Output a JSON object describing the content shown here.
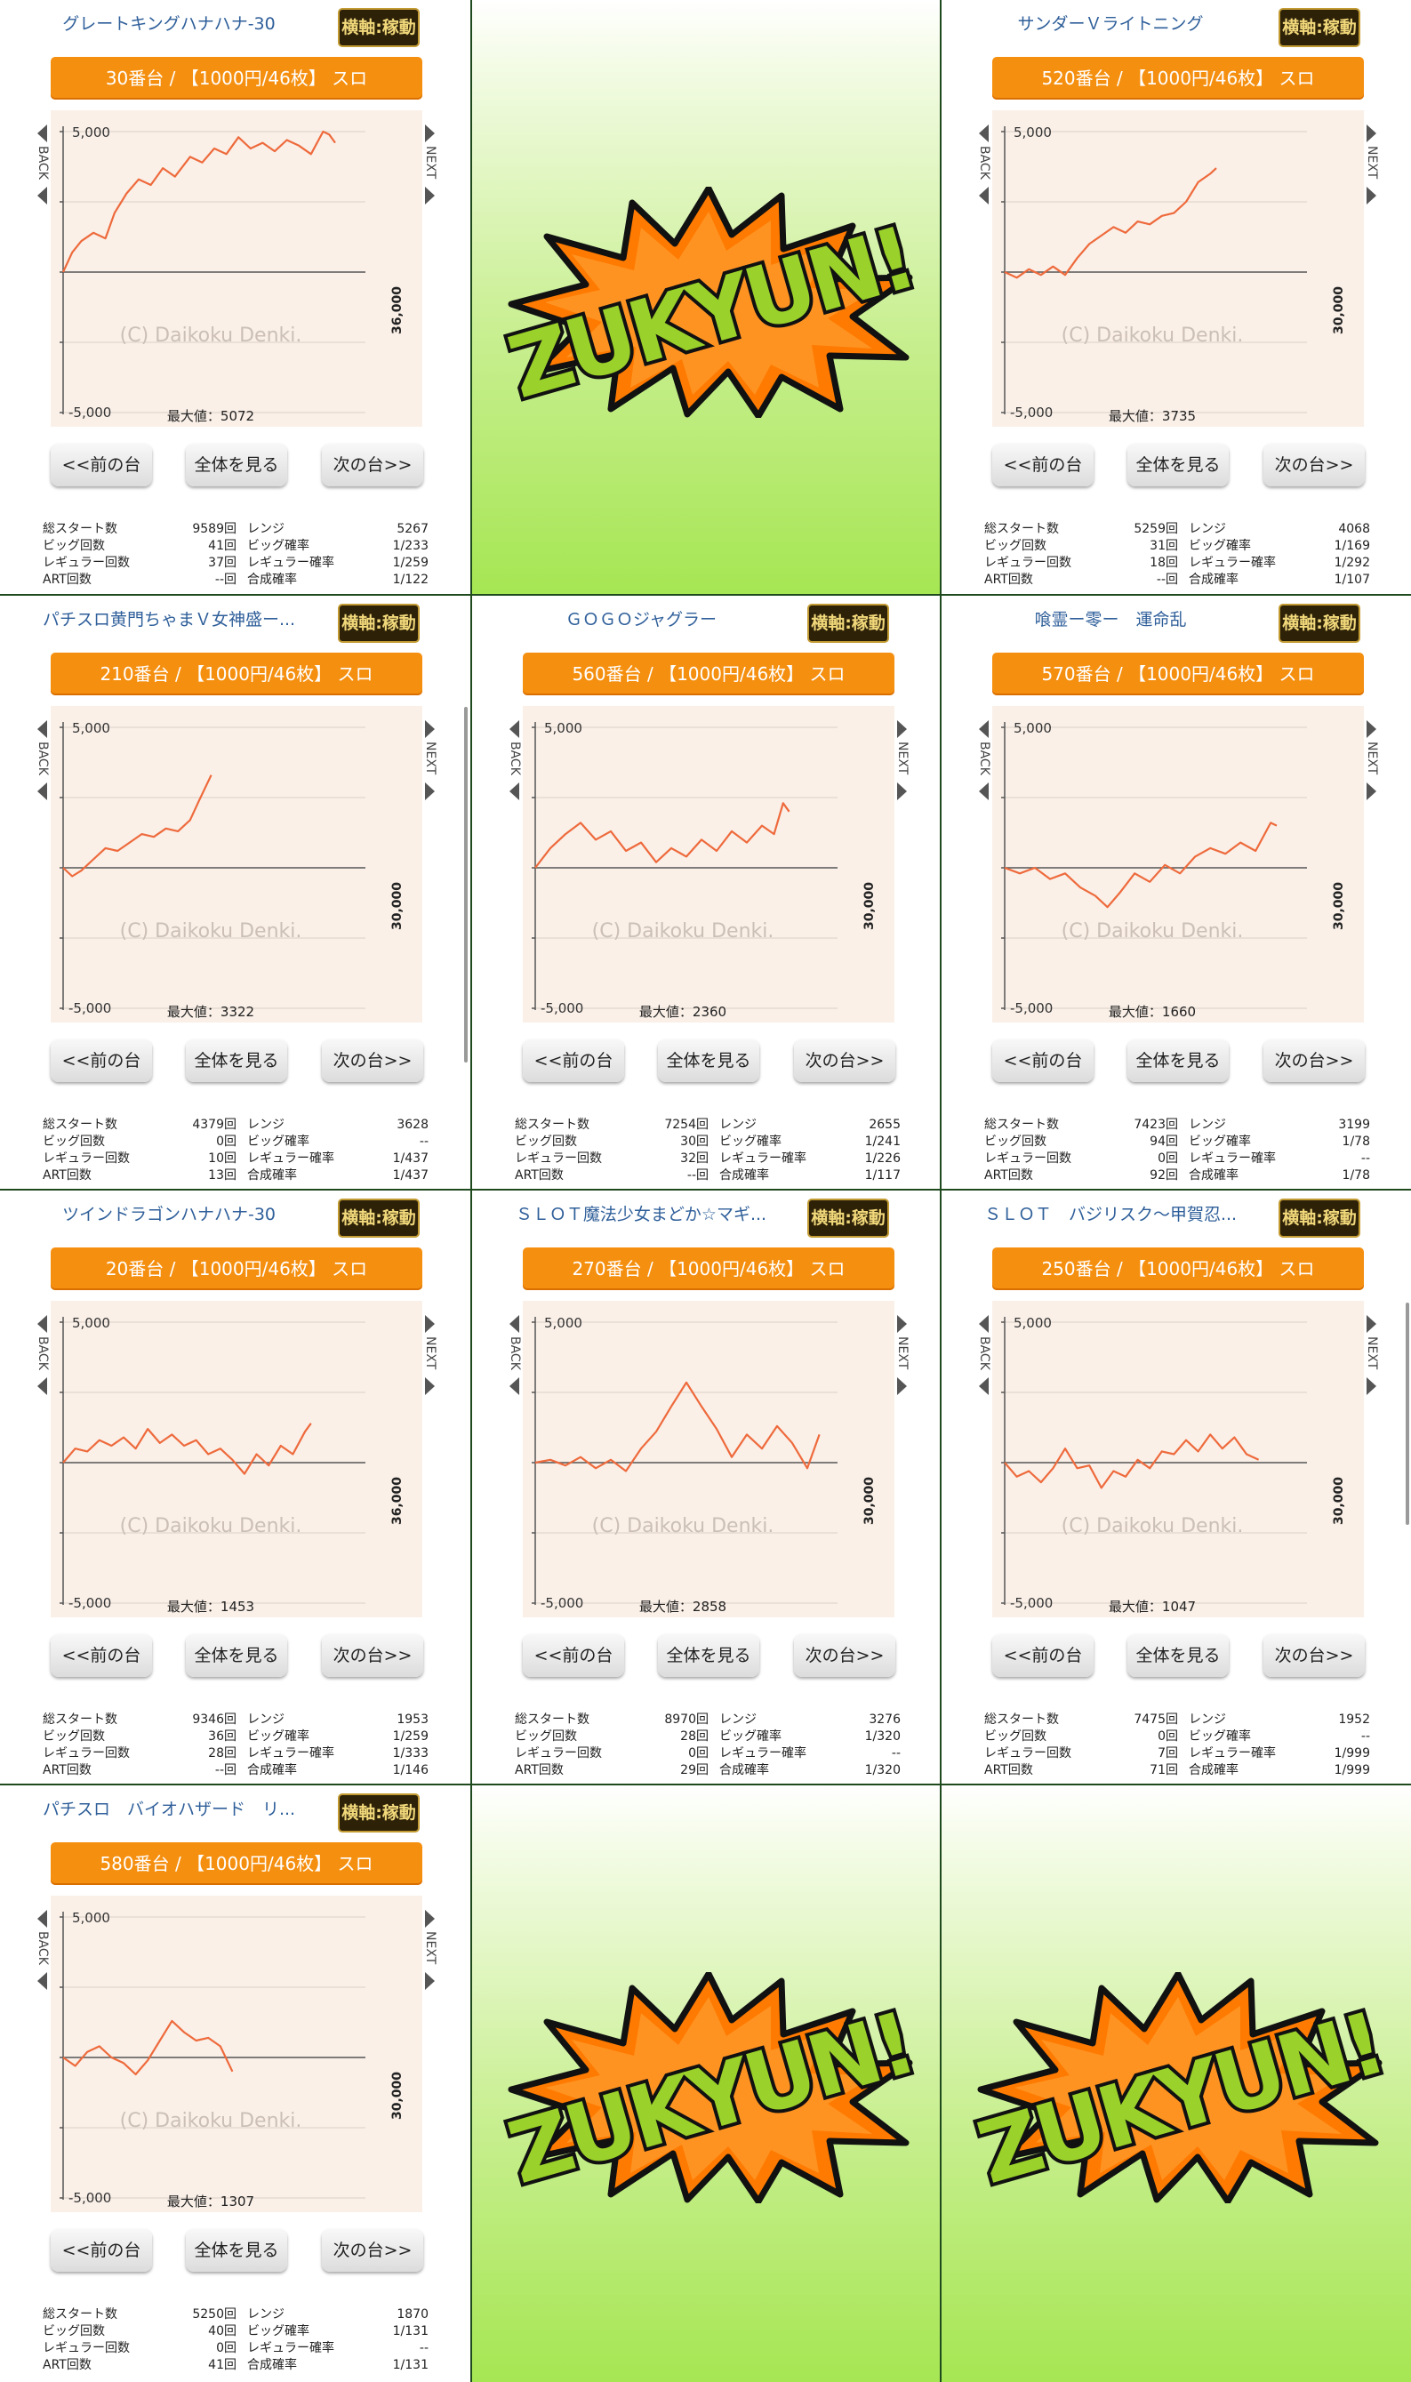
{
  "promo_logo_text": "ZUKYUN!",
  "common": {
    "badge": "横軸:稼動",
    "prev": "<<前の台",
    "all": "全体を見る",
    "next": "次の台>>",
    "back_text": "BACK",
    "next_text": "NEXT",
    "watermark": "(C) Daikoku Denki.",
    "y_top": "5,000",
    "y_bottom": "-5,000",
    "max_prefix": "最大値：",
    "stat_labels": {
      "total_start": "総スタート数",
      "big": "ビッグ回数",
      "regular": "レギュラー回数",
      "art": "ART回数",
      "rate": "レンジ",
      "big_rate": "ビッグ確率",
      "reg_rate": "レギュラー確率",
      "combined_rate": "合成確率"
    }
  },
  "cells": [
    {
      "type": "machine",
      "title": "グレートキングハナハナ-30",
      "machine": "30番台 / 【1000円/46枚】 スロ",
      "x_axis": "36,000",
      "max": "5072",
      "stats": {
        "total_start": "9589回",
        "big": "41回",
        "regular": "37回",
        "art": "--回",
        "rate": "5267",
        "big_rate": "1/233",
        "reg_rate": "1/259",
        "combined_rate": "1/122"
      },
      "series": [
        [
          0,
          0
        ],
        [
          0.03,
          700
        ],
        [
          0.06,
          1100
        ],
        [
          0.1,
          1400
        ],
        [
          0.14,
          1200
        ],
        [
          0.17,
          2100
        ],
        [
          0.21,
          2800
        ],
        [
          0.25,
          3300
        ],
        [
          0.29,
          3100
        ],
        [
          0.33,
          3700
        ],
        [
          0.37,
          3400
        ],
        [
          0.42,
          4100
        ],
        [
          0.46,
          3900
        ],
        [
          0.5,
          4400
        ],
        [
          0.54,
          4200
        ],
        [
          0.58,
          4800
        ],
        [
          0.62,
          4400
        ],
        [
          0.66,
          4600
        ],
        [
          0.7,
          4300
        ],
        [
          0.74,
          4700
        ],
        [
          0.78,
          4500
        ],
        [
          0.82,
          4200
        ],
        [
          0.86,
          5000
        ],
        [
          0.88,
          4900
        ],
        [
          0.9,
          4600
        ]
      ]
    },
    {
      "type": "promo"
    },
    {
      "type": "machine",
      "title": "サンダーＶライトニング",
      "machine": "520番台 / 【1000円/46枚】 スロ",
      "x_axis": "30,000",
      "max": "3735",
      "stats": {
        "total_start": "5259回",
        "big": "31回",
        "regular": "18回",
        "art": "--回",
        "rate": "4068",
        "big_rate": "1/169",
        "reg_rate": "1/292",
        "combined_rate": "1/107"
      },
      "series": [
        [
          0,
          0
        ],
        [
          0.04,
          -200
        ],
        [
          0.08,
          100
        ],
        [
          0.12,
          -100
        ],
        [
          0.16,
          200
        ],
        [
          0.2,
          -100
        ],
        [
          0.24,
          500
        ],
        [
          0.28,
          1000
        ],
        [
          0.32,
          1300
        ],
        [
          0.36,
          1600
        ],
        [
          0.4,
          1400
        ],
        [
          0.44,
          1800
        ],
        [
          0.48,
          1700
        ],
        [
          0.52,
          2000
        ],
        [
          0.56,
          2100
        ],
        [
          0.6,
          2500
        ],
        [
          0.64,
          3200
        ],
        [
          0.68,
          3500
        ],
        [
          0.7,
          3700
        ]
      ]
    },
    {
      "type": "machine",
      "title": "パチスロ黄門ちゃまＶ女神盛ー...",
      "machine": "210番台 / 【1000円/46枚】 スロ",
      "x_axis": "30,000",
      "max": "3322",
      "stats": {
        "total_start": "4379回",
        "big": "0回",
        "regular": "10回",
        "art": "13回",
        "rate": "3628",
        "big_rate": "--",
        "reg_rate": "1/437",
        "combined_rate": "1/437"
      },
      "series": [
        [
          0,
          0
        ],
        [
          0.03,
          -300
        ],
        [
          0.06,
          -100
        ],
        [
          0.1,
          300
        ],
        [
          0.14,
          700
        ],
        [
          0.18,
          600
        ],
        [
          0.22,
          900
        ],
        [
          0.26,
          1200
        ],
        [
          0.3,
          1100
        ],
        [
          0.34,
          1400
        ],
        [
          0.38,
          1300
        ],
        [
          0.42,
          1700
        ],
        [
          0.45,
          2400
        ],
        [
          0.49,
          3300
        ]
      ]
    },
    {
      "type": "machine",
      "title": "ＧＯＧＯジャグラー",
      "machine": "560番台 / 【1000円/46枚】 スロ",
      "x_axis": "30,000",
      "max": "2360",
      "stats": {
        "total_start": "7254回",
        "big": "30回",
        "regular": "32回",
        "art": "--回",
        "rate": "2655",
        "big_rate": "1/241",
        "reg_rate": "1/226",
        "combined_rate": "1/117"
      },
      "series": [
        [
          0,
          0
        ],
        [
          0.05,
          700
        ],
        [
          0.1,
          1200
        ],
        [
          0.15,
          1600
        ],
        [
          0.2,
          1000
        ],
        [
          0.25,
          1300
        ],
        [
          0.3,
          600
        ],
        [
          0.35,
          900
        ],
        [
          0.4,
          200
        ],
        [
          0.45,
          700
        ],
        [
          0.5,
          400
        ],
        [
          0.55,
          1000
        ],
        [
          0.6,
          600
        ],
        [
          0.65,
          1300
        ],
        [
          0.7,
          900
        ],
        [
          0.75,
          1500
        ],
        [
          0.79,
          1200
        ],
        [
          0.82,
          2300
        ],
        [
          0.84,
          2000
        ]
      ]
    },
    {
      "type": "machine",
      "title": "喰霊ー零ー　運命乱",
      "machine": "570番台 / 【1000円/46枚】 スロ",
      "x_axis": "30,000",
      "max": "1660",
      "stats": {
        "total_start": "7423回",
        "big": "94回",
        "regular": "0回",
        "art": "92回",
        "rate": "3199",
        "big_rate": "1/78",
        "reg_rate": "--",
        "combined_rate": "1/78"
      },
      "series": [
        [
          0,
          0
        ],
        [
          0.05,
          -200
        ],
        [
          0.1,
          0
        ],
        [
          0.15,
          -400
        ],
        [
          0.2,
          -200
        ],
        [
          0.25,
          -700
        ],
        [
          0.3,
          -1000
        ],
        [
          0.34,
          -1400
        ],
        [
          0.38,
          -900
        ],
        [
          0.43,
          -200
        ],
        [
          0.48,
          -500
        ],
        [
          0.53,
          100
        ],
        [
          0.58,
          -200
        ],
        [
          0.63,
          400
        ],
        [
          0.68,
          700
        ],
        [
          0.73,
          500
        ],
        [
          0.78,
          900
        ],
        [
          0.83,
          600
        ],
        [
          0.88,
          1600
        ],
        [
          0.9,
          1500
        ]
      ]
    },
    {
      "type": "machine",
      "title": "ツインドラゴンハナハナ-30",
      "machine": "20番台 / 【1000円/46枚】 スロ",
      "x_axis": "36,000",
      "max": "1453",
      "stats": {
        "total_start": "9346回",
        "big": "36回",
        "regular": "28回",
        "art": "--回",
        "rate": "1953",
        "big_rate": "1/259",
        "reg_rate": "1/333",
        "combined_rate": "1/146"
      },
      "series": [
        [
          0,
          0
        ],
        [
          0.04,
          500
        ],
        [
          0.08,
          400
        ],
        [
          0.12,
          800
        ],
        [
          0.16,
          600
        ],
        [
          0.2,
          900
        ],
        [
          0.24,
          500
        ],
        [
          0.28,
          1200
        ],
        [
          0.32,
          700
        ],
        [
          0.36,
          1000
        ],
        [
          0.4,
          600
        ],
        [
          0.44,
          800
        ],
        [
          0.48,
          300
        ],
        [
          0.52,
          500
        ],
        [
          0.56,
          100
        ],
        [
          0.6,
          -400
        ],
        [
          0.64,
          300
        ],
        [
          0.68,
          -100
        ],
        [
          0.72,
          600
        ],
        [
          0.76,
          300
        ],
        [
          0.8,
          1100
        ],
        [
          0.82,
          1400
        ]
      ]
    },
    {
      "type": "machine",
      "title": "ＳＬＯＴ魔法少女まどか☆マギ...",
      "machine": "270番台 / 【1000円/46枚】 スロ",
      "x_axis": "30,000",
      "max": "2858",
      "stats": {
        "total_start": "8970回",
        "big": "28回",
        "regular": "0回",
        "art": "29回",
        "rate": "3276",
        "big_rate": "1/320",
        "reg_rate": "--",
        "combined_rate": "1/320"
      },
      "series": [
        [
          0,
          0
        ],
        [
          0.05,
          100
        ],
        [
          0.1,
          -100
        ],
        [
          0.15,
          200
        ],
        [
          0.2,
          -200
        ],
        [
          0.25,
          100
        ],
        [
          0.3,
          -300
        ],
        [
          0.35,
          500
        ],
        [
          0.4,
          1100
        ],
        [
          0.45,
          2000
        ],
        [
          0.5,
          2850
        ],
        [
          0.55,
          2000
        ],
        [
          0.6,
          1200
        ],
        [
          0.65,
          200
        ],
        [
          0.7,
          1000
        ],
        [
          0.75,
          500
        ],
        [
          0.8,
          1300
        ],
        [
          0.85,
          700
        ],
        [
          0.9,
          -200
        ],
        [
          0.94,
          1000
        ]
      ]
    },
    {
      "type": "machine",
      "title": "ＳＬＯＴ　バジリスク〜甲賀忍...",
      "machine": "250番台 / 【1000円/46枚】 スロ",
      "x_axis": "30,000",
      "max": "1047",
      "stats": {
        "total_start": "7475回",
        "big": "0回",
        "regular": "7回",
        "art": "71回",
        "rate": "1952",
        "big_rate": "--",
        "reg_rate": "1/999",
        "combined_rate": "1/999"
      },
      "series": [
        [
          0,
          0
        ],
        [
          0.04,
          -500
        ],
        [
          0.08,
          -300
        ],
        [
          0.12,
          -700
        ],
        [
          0.16,
          -200
        ],
        [
          0.2,
          500
        ],
        [
          0.24,
          -200
        ],
        [
          0.28,
          -100
        ],
        [
          0.32,
          -900
        ],
        [
          0.36,
          -300
        ],
        [
          0.4,
          -500
        ],
        [
          0.44,
          100
        ],
        [
          0.48,
          -200
        ],
        [
          0.52,
          400
        ],
        [
          0.56,
          300
        ],
        [
          0.6,
          800
        ],
        [
          0.64,
          400
        ],
        [
          0.68,
          1000
        ],
        [
          0.72,
          500
        ],
        [
          0.76,
          900
        ],
        [
          0.8,
          300
        ],
        [
          0.84,
          100
        ]
      ]
    },
    {
      "type": "machine",
      "title": "パチスロ　バイオハザード　リ...",
      "machine": "580番台 / 【1000円/46枚】 スロ",
      "x_axis": "30,000",
      "max": "1307",
      "stats": {
        "total_start": "5250回",
        "big": "40回",
        "regular": "0回",
        "art": "41回",
        "rate": "1870",
        "big_rate": "1/131",
        "reg_rate": "--",
        "combined_rate": "1/131"
      },
      "series": [
        [
          0,
          0
        ],
        [
          0.04,
          -300
        ],
        [
          0.08,
          200
        ],
        [
          0.12,
          400
        ],
        [
          0.16,
          0
        ],
        [
          0.2,
          -200
        ],
        [
          0.24,
          -600
        ],
        [
          0.28,
          -100
        ],
        [
          0.32,
          600
        ],
        [
          0.36,
          1300
        ],
        [
          0.4,
          900
        ],
        [
          0.44,
          600
        ],
        [
          0.48,
          700
        ],
        [
          0.52,
          400
        ],
        [
          0.56,
          -500
        ]
      ]
    },
    {
      "type": "promo"
    },
    {
      "type": "promo"
    }
  ]
}
